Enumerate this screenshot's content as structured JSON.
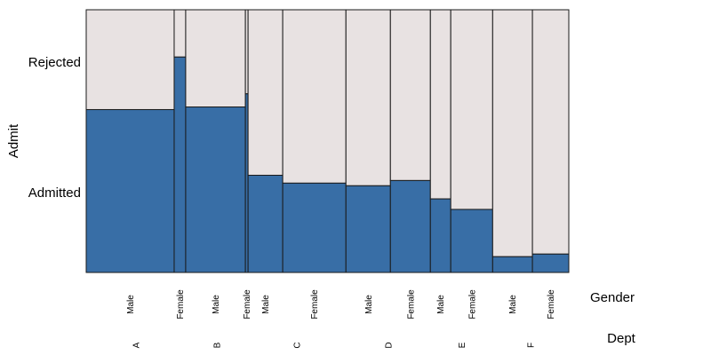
{
  "chart_data": {
    "type": "mosaic",
    "title": "",
    "y_variable": "Admit",
    "y_levels": [
      "Admitted",
      "Rejected"
    ],
    "x_variables": [
      "Dept",
      "Gender"
    ],
    "x_variable_titles": {
      "inner": "Gender",
      "outer": "Dept"
    },
    "colors": {
      "Admitted": "#386ea6",
      "Rejected": "#e8e2e2",
      "border": "#1a1a1a"
    },
    "groups": [
      {
        "dept": "A",
        "cells": [
          {
            "gender": "Male",
            "count": 825,
            "admitted_fraction": 0.62
          },
          {
            "gender": "Female",
            "count": 108,
            "admitted_fraction": 0.82
          }
        ]
      },
      {
        "dept": "B",
        "cells": [
          {
            "gender": "Male",
            "count": 560,
            "admitted_fraction": 0.63
          },
          {
            "gender": "Female",
            "count": 25,
            "admitted_fraction": 0.68
          }
        ]
      },
      {
        "dept": "C",
        "cells": [
          {
            "gender": "Male",
            "count": 325,
            "admitted_fraction": 0.37
          },
          {
            "gender": "Female",
            "count": 593,
            "admitted_fraction": 0.34
          }
        ]
      },
      {
        "dept": "D",
        "cells": [
          {
            "gender": "Male",
            "count": 417,
            "admitted_fraction": 0.33
          },
          {
            "gender": "Female",
            "count": 375,
            "admitted_fraction": 0.35
          }
        ]
      },
      {
        "dept": "E",
        "cells": [
          {
            "gender": "Male",
            "count": 191,
            "admitted_fraction": 0.28
          },
          {
            "gender": "Female",
            "count": 393,
            "admitted_fraction": 0.24
          }
        ]
      },
      {
        "dept": "F",
        "cells": [
          {
            "gender": "Male",
            "count": 373,
            "admitted_fraction": 0.06
          },
          {
            "gender": "Female",
            "count": 341,
            "admitted_fraction": 0.07
          }
        ]
      }
    ]
  }
}
